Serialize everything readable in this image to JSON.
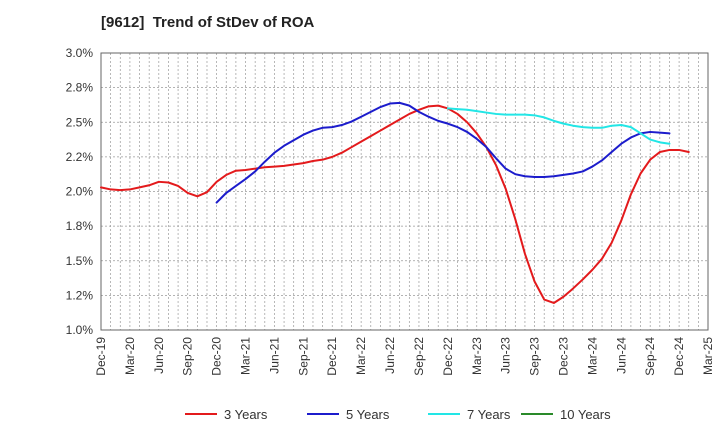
{
  "chart_data": {
    "type": "line",
    "title": "[9612]  Trend of StDev of ROA",
    "y_ticks": [
      "3.0%",
      "2.8%",
      "2.5%",
      "2.2%",
      "2.0%",
      "1.8%",
      "1.5%",
      "1.2%",
      "1.0%"
    ],
    "y_tick_values": [
      3.0,
      2.75,
      2.5,
      2.25,
      2.0,
      1.75,
      1.5,
      1.25,
      1.0
    ],
    "ylim": [
      1.0,
      3.0
    ],
    "x_ticks": [
      "Dec-19",
      "Mar-20",
      "Jun-20",
      "Sep-20",
      "Dec-20",
      "Mar-21",
      "Jun-21",
      "Sep-21",
      "Dec-21",
      "Mar-22",
      "Jun-22",
      "Sep-22",
      "Dec-22",
      "Mar-23",
      "Jun-23",
      "Sep-23",
      "Dec-23",
      "Mar-24",
      "Jun-24",
      "Sep-24",
      "Dec-24",
      "Mar-25"
    ],
    "x_start": "Dec-19",
    "x_step_months": 1,
    "grid": true,
    "legend_position": "bottom",
    "series": [
      {
        "name": "3 Years",
        "color": "#e31a1c",
        "start_index": 0,
        "values": [
          2.03,
          2.015,
          2.01,
          2.015,
          2.03,
          2.045,
          2.07,
          2.065,
          2.04,
          1.99,
          1.965,
          1.995,
          2.07,
          2.12,
          2.15,
          2.155,
          2.165,
          2.175,
          2.18,
          2.185,
          2.195,
          2.205,
          2.22,
          2.23,
          2.25,
          2.28,
          2.32,
          2.36,
          2.4,
          2.44,
          2.48,
          2.52,
          2.56,
          2.59,
          2.615,
          2.62,
          2.6,
          2.56,
          2.5,
          2.42,
          2.32,
          2.19,
          2.02,
          1.8,
          1.55,
          1.35,
          1.22,
          1.195,
          1.24,
          1.3,
          1.365,
          1.435,
          1.515,
          1.63,
          1.79,
          1.98,
          2.13,
          2.23,
          2.285,
          2.3,
          2.3,
          2.285
        ]
      },
      {
        "name": "5 Years",
        "color": "#1c1ccc",
        "start_index": 12,
        "values": [
          1.92,
          1.99,
          2.04,
          2.09,
          2.145,
          2.215,
          2.28,
          2.33,
          2.37,
          2.41,
          2.44,
          2.46,
          2.465,
          2.48,
          2.505,
          2.54,
          2.575,
          2.61,
          2.635,
          2.64,
          2.62,
          2.575,
          2.54,
          2.51,
          2.49,
          2.465,
          2.43,
          2.38,
          2.32,
          2.24,
          2.165,
          2.125,
          2.11,
          2.105,
          2.105,
          2.11,
          2.12,
          2.13,
          2.145,
          2.18,
          2.225,
          2.285,
          2.345,
          2.39,
          2.42,
          2.43,
          2.425,
          2.42
        ]
      },
      {
        "name": "7 Years",
        "color": "#22e6e6",
        "start_index": 36,
        "values": [
          2.6,
          2.595,
          2.59,
          2.58,
          2.57,
          2.56,
          2.555,
          2.555,
          2.555,
          2.55,
          2.535,
          2.51,
          2.49,
          2.475,
          2.465,
          2.46,
          2.46,
          2.475,
          2.48,
          2.465,
          2.42,
          2.375,
          2.355,
          2.345
        ]
      },
      {
        "name": "10 Years",
        "color": "#2a8a2a",
        "start_index": 0,
        "values": []
      }
    ]
  }
}
